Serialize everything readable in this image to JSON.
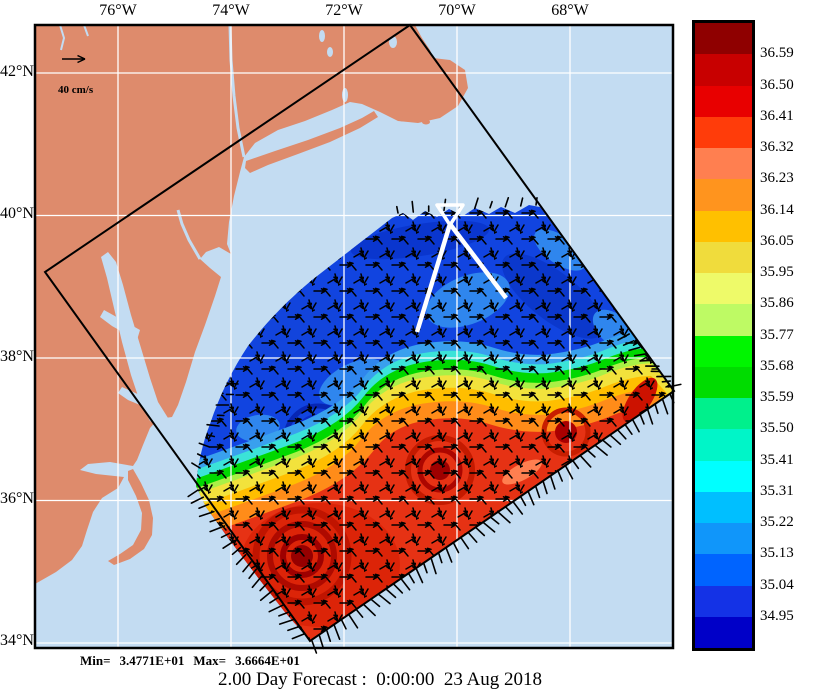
{
  "title": "2.00 Day Forecast :  0:00:00  23 Aug 2018",
  "stats": {
    "min_label": "Min=",
    "min_value": "3.4771E+01",
    "max_label": "Max=",
    "max_value": "3.6664E+01"
  },
  "axes": {
    "lon_labels": [
      "76°W",
      "74°W",
      "72°W",
      "70°W",
      "68°W"
    ],
    "lat_labels": [
      "42°N",
      "40°N",
      "38°N",
      "36°N",
      "34°N"
    ]
  },
  "vector_scale": {
    "label": "40 cm/s"
  },
  "colorbar": {
    "labels": [
      "36.59",
      "36.50",
      "36.41",
      "36.32",
      "36.23",
      "36.14",
      "36.05",
      "35.95",
      "35.86",
      "35.77",
      "35.68",
      "35.59",
      "35.50",
      "35.41",
      "35.31",
      "35.22",
      "35.13",
      "35.04",
      "34.95"
    ],
    "colors": [
      "#8F0000",
      "#C80000",
      "#E80000",
      "#FF3C0A",
      "#FF7F50",
      "#FF941E",
      "#FFC000",
      "#F0DC3C",
      "#EEFA69",
      "#BEFA64",
      "#00F500",
      "#00DC00",
      "#00F08C",
      "#00F5C8",
      "#00FFFF",
      "#00BFFF",
      "#1096FA",
      "#0064FF",
      "#1432E6",
      "#0000C8"
    ]
  },
  "map": {
    "land_color": "#DE8B6C",
    "ocean_color": "#C3DCF2",
    "grid_color": "#FFFFFF",
    "domain_outline_color": "#000000",
    "arrow_color": "#000000",
    "marker_color": "#FFFFFF",
    "field_warm_color": "#E63214",
    "field_cool_color": "#1144E0"
  }
}
